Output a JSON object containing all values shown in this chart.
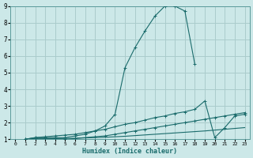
{
  "xlabel": "Humidex (Indice chaleur)",
  "xlim": [
    -0.5,
    23.5
  ],
  "ylim": [
    1,
    9
  ],
  "xticks": [
    0,
    1,
    2,
    3,
    4,
    5,
    6,
    7,
    8,
    9,
    10,
    11,
    12,
    13,
    14,
    15,
    16,
    17,
    18,
    19,
    20,
    21,
    22,
    23
  ],
  "yticks": [
    1,
    2,
    3,
    4,
    5,
    6,
    7,
    8,
    9
  ],
  "bg_color": "#cce8e8",
  "grid_color": "#aacccc",
  "line_color": "#1a6b6b",
  "lines": [
    {
      "x": [
        1,
        2,
        3,
        4,
        5,
        6,
        7,
        8,
        9,
        10,
        11,
        12,
        13,
        14,
        15,
        16,
        17,
        18
      ],
      "y": [
        1.0,
        1.1,
        1.1,
        1.1,
        1.1,
        1.2,
        1.3,
        1.5,
        1.8,
        2.5,
        5.3,
        6.5,
        7.5,
        8.4,
        9.0,
        9.0,
        8.7,
        5.5
      ],
      "marker": true
    },
    {
      "x": [
        1,
        2,
        3,
        4,
        5,
        6,
        7,
        8,
        9,
        10,
        11,
        12,
        13,
        14,
        15,
        16,
        17,
        18,
        19,
        20,
        21,
        22,
        23
      ],
      "y": [
        1.0,
        1.1,
        1.15,
        1.2,
        1.25,
        1.3,
        1.4,
        1.5,
        1.6,
        1.75,
        1.9,
        2.0,
        2.15,
        2.3,
        2.4,
        2.55,
        2.65,
        2.8,
        3.3,
        1.1,
        1.7,
        2.4,
        2.5
      ],
      "marker": true
    },
    {
      "x": [
        1,
        2,
        3,
        4,
        5,
        6,
        7,
        8,
        9,
        10,
        11,
        12,
        13,
        14,
        15,
        16,
        17,
        18,
        19,
        20,
        21,
        22,
        23
      ],
      "y": [
        1.0,
        1.05,
        1.05,
        1.05,
        1.0,
        1.05,
        1.1,
        1.15,
        1.2,
        1.3,
        1.4,
        1.5,
        1.6,
        1.7,
        1.8,
        1.9,
        2.0,
        2.1,
        2.2,
        2.3,
        2.4,
        2.5,
        2.6
      ],
      "marker": true
    },
    {
      "x": [
        1,
        2,
        3,
        4,
        5,
        6,
        7,
        8,
        9,
        10,
        11,
        12,
        13,
        14,
        15,
        16,
        17,
        18,
        19,
        20,
        21,
        22,
        23
      ],
      "y": [
        1.0,
        1.02,
        1.03,
        1.04,
        1.05,
        1.06,
        1.08,
        1.1,
        1.12,
        1.15,
        1.18,
        1.22,
        1.26,
        1.3,
        1.34,
        1.38,
        1.42,
        1.46,
        1.5,
        1.55,
        1.6,
        1.65,
        1.7
      ],
      "marker": false
    }
  ]
}
